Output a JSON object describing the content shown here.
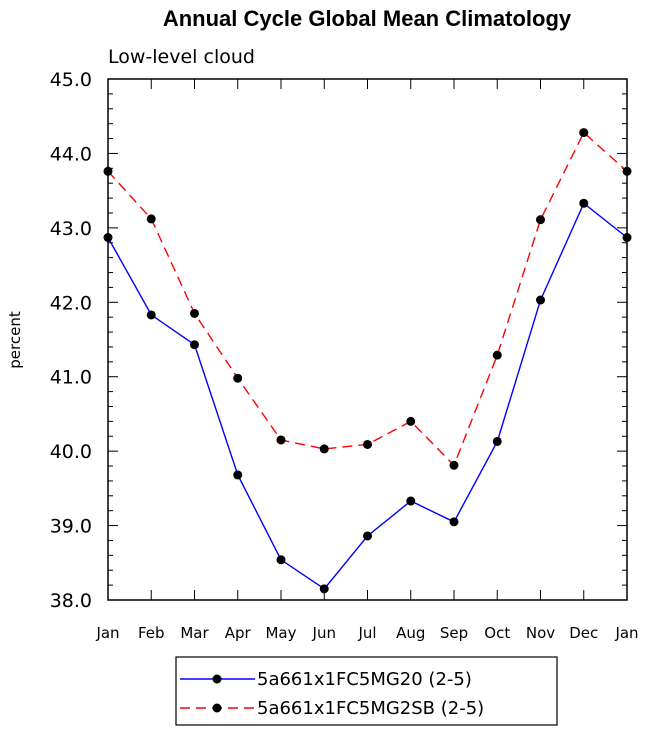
{
  "chart_data": {
    "type": "line",
    "title": "Annual Cycle Global Mean Climatology",
    "subtitle": "Low-level cloud",
    "xlabel": "",
    "ylabel": "percent",
    "ylim": [
      38.0,
      45.0
    ],
    "yticks": [
      "38.0",
      "39.0",
      "40.0",
      "41.0",
      "42.0",
      "43.0",
      "44.0",
      "45.0"
    ],
    "categories": [
      "Jan",
      "Feb",
      "Mar",
      "Apr",
      "May",
      "Jun",
      "Jul",
      "Aug",
      "Sep",
      "Oct",
      "Nov",
      "Dec",
      "Jan"
    ],
    "series": [
      {
        "name": "5a661x1FC5MG20 (2-5)",
        "color": "#0000ff",
        "dash": "solid",
        "values": [
          42.87,
          41.83,
          41.43,
          39.68,
          38.54,
          38.15,
          38.86,
          39.33,
          39.05,
          40.13,
          42.03,
          43.33,
          42.87
        ]
      },
      {
        "name": "5a661x1FC5MG2SB (2-5)",
        "color": "#ff0000",
        "dash": "dashed",
        "values": [
          43.76,
          43.12,
          41.85,
          40.98,
          40.15,
          40.03,
          40.09,
          40.4,
          39.81,
          41.29,
          43.11,
          44.28,
          43.76
        ]
      }
    ],
    "grid": false,
    "legend_position": "bottom-center"
  }
}
